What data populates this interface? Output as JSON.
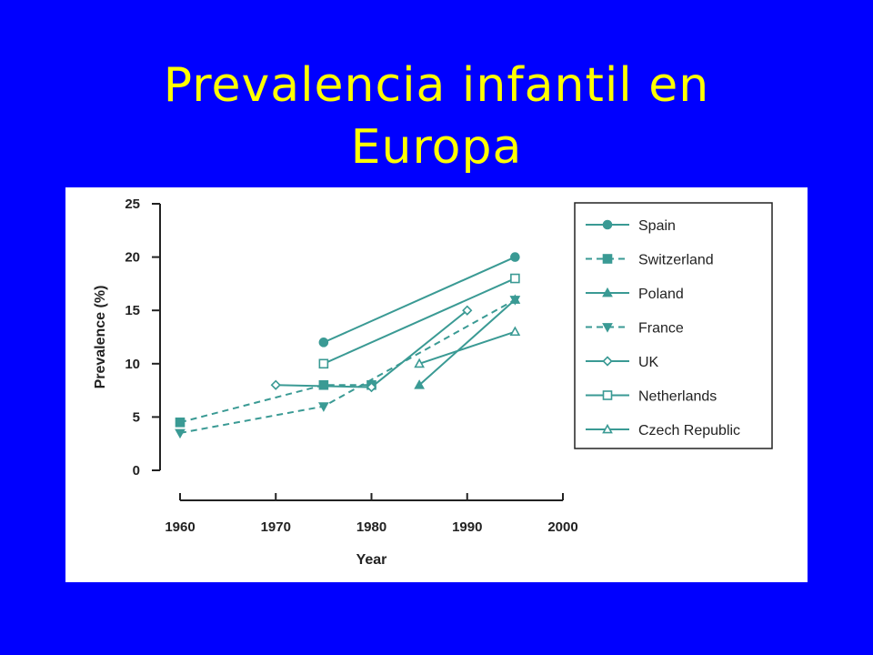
{
  "slide": {
    "title_line1": "Prevalencia infantil en",
    "title_line2": "Europa"
  },
  "chart_data": {
    "type": "line",
    "title": "Prevalencia infantil en Europa",
    "xlabel": "Year",
    "ylabel": "Prevalence (%)",
    "xlim": [
      1960,
      2000
    ],
    "ylim": [
      0,
      25
    ],
    "xticks": [
      1960,
      1970,
      1980,
      1990,
      2000
    ],
    "yticks": [
      0,
      5,
      10,
      15,
      20,
      25
    ],
    "grid": false,
    "legend_position": "right",
    "color": "#3a9a94",
    "series": [
      {
        "name": "Spain",
        "marker": "circle-filled",
        "dash": "solid",
        "points": [
          [
            1975,
            12
          ],
          [
            1995,
            20
          ]
        ]
      },
      {
        "name": "Switzerland",
        "marker": "square-filled",
        "dash": "dashed",
        "points": [
          [
            1960,
            4.5
          ],
          [
            1975,
            8
          ],
          [
            1980,
            8
          ]
        ]
      },
      {
        "name": "Poland",
        "marker": "triangle-filled",
        "dash": "solid",
        "points": [
          [
            1985,
            8
          ],
          [
            1995,
            16
          ]
        ]
      },
      {
        "name": "France",
        "marker": "triangle-down-filled",
        "dash": "dashed",
        "points": [
          [
            1960,
            3.5
          ],
          [
            1975,
            6
          ],
          [
            1995,
            16
          ]
        ]
      },
      {
        "name": "UK",
        "marker": "diamond-open",
        "dash": "solid",
        "points": [
          [
            1970,
            8
          ],
          [
            1980,
            7.8
          ],
          [
            1990,
            15
          ]
        ]
      },
      {
        "name": "Netherlands",
        "marker": "square-open",
        "dash": "solid",
        "points": [
          [
            1975,
            10
          ],
          [
            1995,
            18
          ]
        ]
      },
      {
        "name": "Czech Republic",
        "marker": "triangle-open",
        "dash": "solid",
        "points": [
          [
            1985,
            10
          ],
          [
            1995,
            13
          ]
        ]
      }
    ]
  }
}
